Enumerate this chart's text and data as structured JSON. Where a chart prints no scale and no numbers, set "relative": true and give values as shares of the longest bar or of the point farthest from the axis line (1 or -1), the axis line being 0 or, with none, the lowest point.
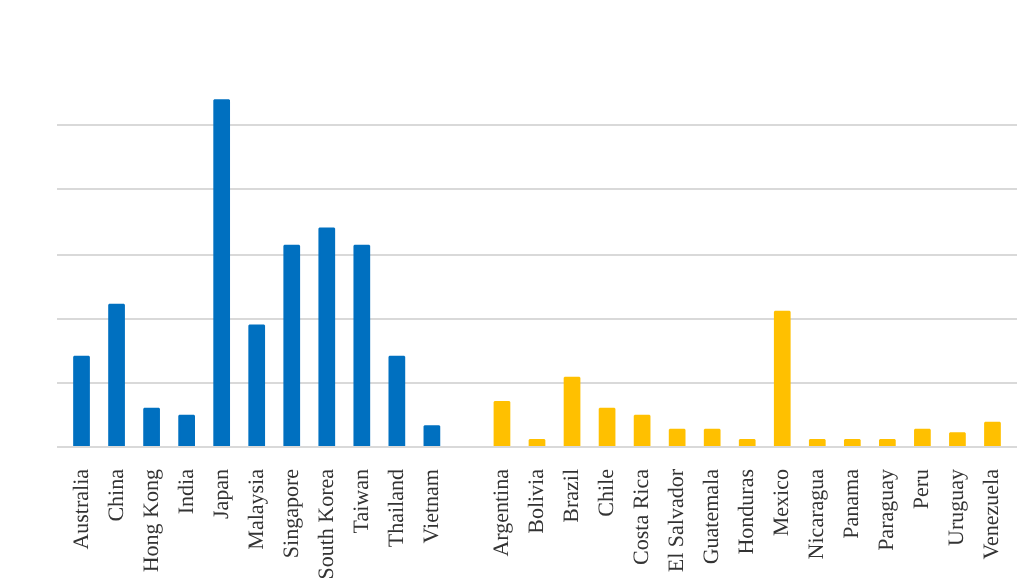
{
  "chart_data": {
    "type": "bar",
    "relative": true,
    "grid": "y",
    "categories": [
      "Australia",
      "China",
      "Hong Kong",
      "India",
      "Japan",
      "Malaysia",
      "Singapore",
      "South Korea",
      "Taiwan",
      "Thailand",
      "Vietnam",
      null,
      "Argentina",
      "Bolivia",
      "Brazil",
      "Chile",
      "Costa Rica",
      "El Salvador",
      "Guatemala",
      "Honduras",
      "Mexico",
      "Nicaragua",
      "Panama",
      "Paraguay",
      "Peru",
      "Uruguay",
      "Venezuela"
    ],
    "values": [
      0.26,
      0.41,
      0.11,
      0.09,
      1,
      0.35,
      0.58,
      0.63,
      0.58,
      0.26,
      0.06,
      null,
      0.13,
      0.02,
      0.2,
      0.11,
      0.09,
      0.05,
      0.05,
      0.02,
      0.39,
      0.02,
      0.02,
      0.02,
      0.05,
      0.04,
      0.07
    ],
    "colors": [
      "#0070c0",
      "#0070c0",
      "#0070c0",
      "#0070c0",
      "#0070c0",
      "#0070c0",
      "#0070c0",
      "#0070c0",
      "#0070c0",
      "#0070c0",
      "#0070c0",
      null,
      "#ffc000",
      "#ffc000",
      "#ffc000",
      "#ffc000",
      "#ffc000",
      "#ffc000",
      "#ffc000",
      "#ffc000",
      "#ffc000",
      "#ffc000",
      "#ffc000",
      "#ffc000",
      "#ffc000",
      "#ffc000",
      "#ffc000"
    ]
  }
}
